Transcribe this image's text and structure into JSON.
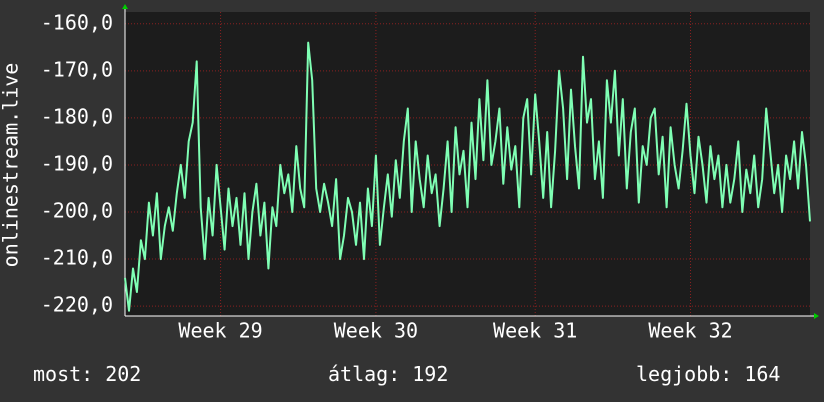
{
  "chart_data": {
    "type": "line",
    "y_label": "onlinestream.live",
    "color": "#7fffb4",
    "grid": true,
    "grid_color": "#8a2020",
    "xlim": [
      0,
      172
    ],
    "xticks": [
      {
        "value": 24,
        "label": "Week 29"
      },
      {
        "value": 63,
        "label": "Week 30"
      },
      {
        "value": 103,
        "label": "Week 31"
      },
      {
        "value": 142,
        "label": "Week 32"
      }
    ],
    "ylim": [
      -222.1,
      -157.5
    ],
    "yticks": [
      {
        "value": -220,
        "label": "-220,0"
      },
      {
        "value": -210,
        "label": "-210,0"
      },
      {
        "value": -200,
        "label": "-200,0"
      },
      {
        "value": -190,
        "label": "-190,0"
      },
      {
        "value": -180,
        "label": "-180,0"
      },
      {
        "value": -170,
        "label": "-170,0"
      },
      {
        "value": -160,
        "label": "-160,0"
      }
    ],
    "values": [
      -214,
      -221,
      -212,
      -217,
      -206,
      -210,
      -198,
      -205,
      -196,
      -210,
      -203,
      -199,
      -204,
      -196,
      -190,
      -197,
      -185,
      -181,
      -168,
      -199,
      -210,
      -197,
      -205,
      -190,
      -199,
      -208,
      -195,
      -203,
      -197,
      -207,
      -196,
      -210,
      -200,
      -194,
      -205,
      -198,
      -212,
      -199,
      -203,
      -190,
      -196,
      -192,
      -200,
      -186,
      -195,
      -199,
      -164,
      -172,
      -195,
      -200,
      -194,
      -198,
      -203,
      -193,
      -210,
      -205,
      -197,
      -200,
      -207,
      -198,
      -210,
      -195,
      -203,
      -188,
      -207,
      -199,
      -192,
      -201,
      -189,
      -197,
      -185,
      -178,
      -200,
      -185,
      -193,
      -199,
      -188,
      -196,
      -192,
      -203,
      -195,
      -185,
      -200,
      -182,
      -192,
      -187,
      -199,
      -181,
      -193,
      -176,
      -189,
      -172,
      -190,
      -185,
      -178,
      -194,
      -182,
      -191,
      -186,
      -199,
      -180,
      -176,
      -192,
      -175,
      -185,
      -197,
      -183,
      -199,
      -187,
      -170,
      -178,
      -193,
      -174,
      -186,
      -195,
      -167,
      -181,
      -176,
      -193,
      -185,
      -197,
      -172,
      -181,
      -170,
      -188,
      -176,
      -195,
      -183,
      -178,
      -198,
      -186,
      -190,
      -180,
      -178,
      -192,
      -184,
      -199,
      -182,
      -190,
      -195,
      -187,
      -177,
      -188,
      -196,
      -184,
      -190,
      -198,
      -186,
      -193,
      -188,
      -199,
      -190,
      -198,
      -193,
      -185,
      -200,
      -191,
      -196,
      -188,
      -199,
      -193,
      -178,
      -187,
      -196,
      -190,
      -200,
      -188,
      -193,
      -185,
      -195,
      -183,
      -190,
      -202
    ],
    "stats": [
      {
        "label": "most:",
        "value": 202
      },
      {
        "label": "átlag:",
        "value": 192
      },
      {
        "label": "legjobb:",
        "value": 164
      }
    ]
  }
}
